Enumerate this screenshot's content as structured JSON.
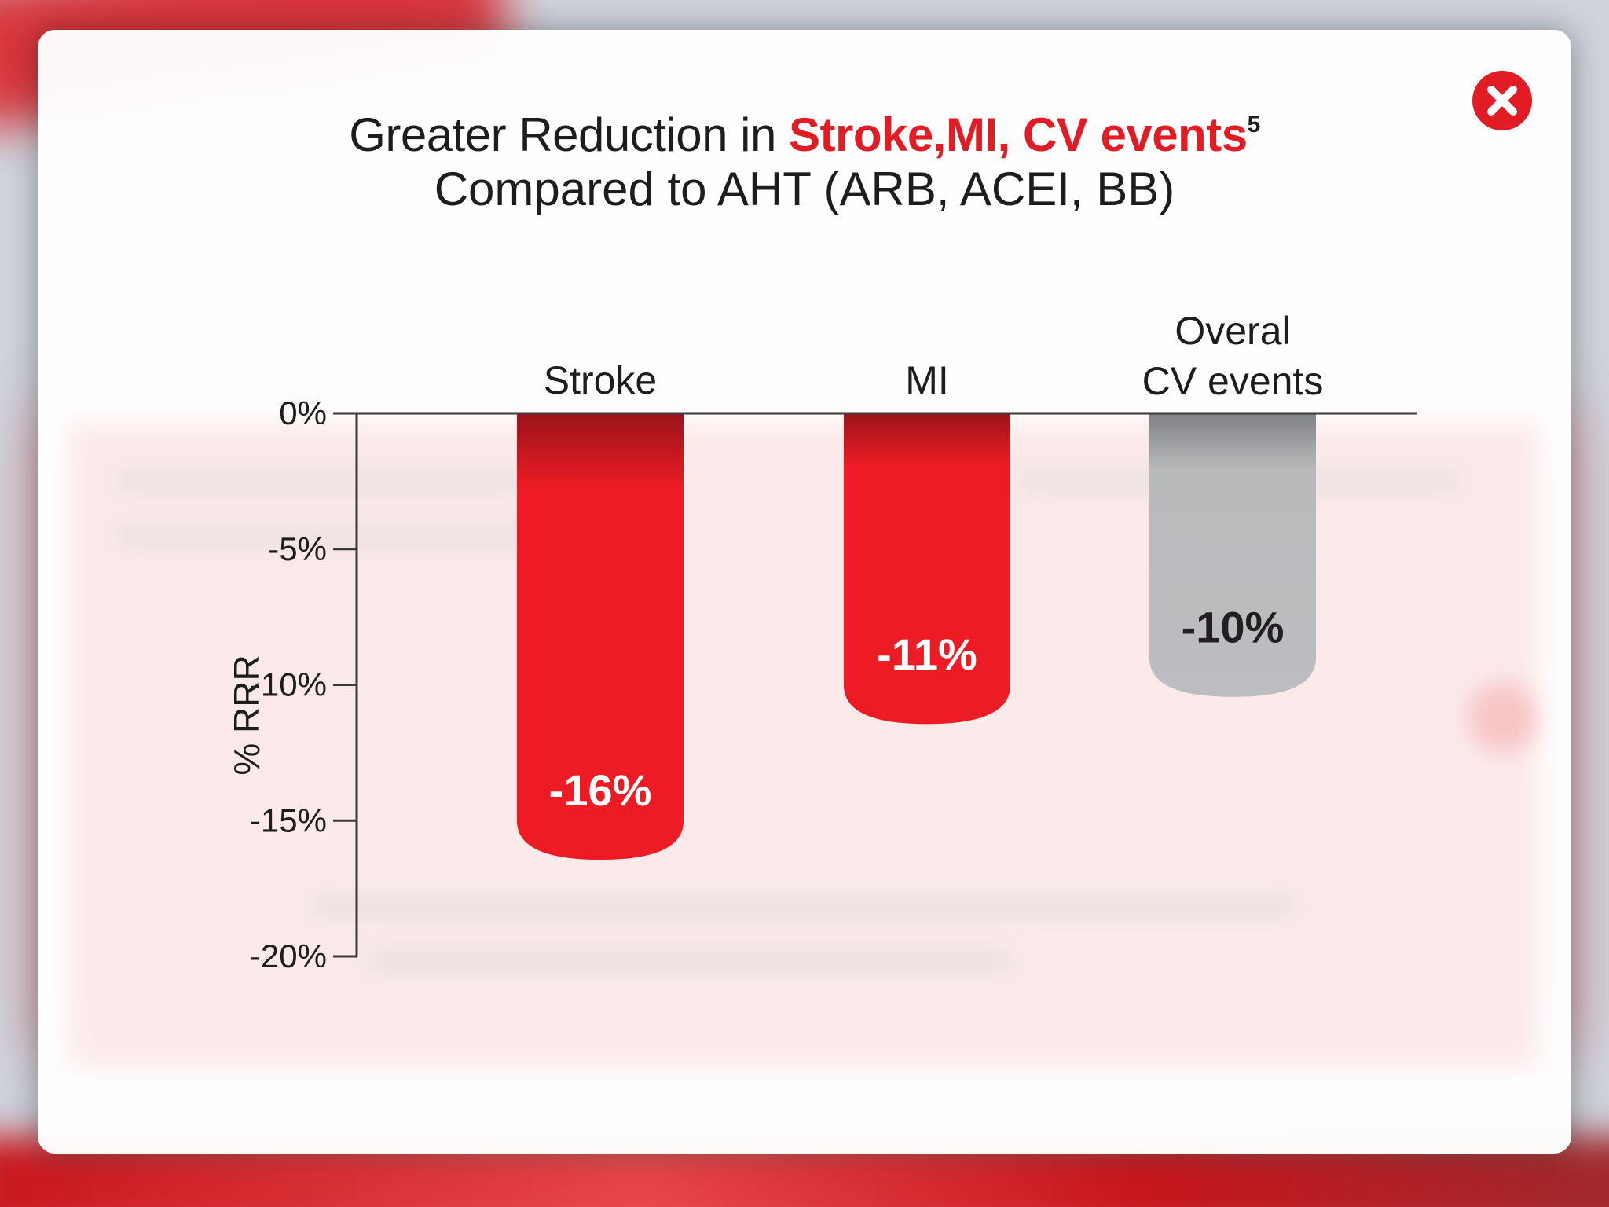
{
  "title": {
    "line1_prefix": "Greater Reduction in ",
    "line1_highlight": "Stroke,MI, CV events",
    "line1_superscript": "5",
    "line2": "Compared to AHT (ARB, ACEI, BB)"
  },
  "close_icon": "close-x-circle-icon",
  "chart_data": {
    "type": "bar",
    "ylabel": "% RRR",
    "ylim": [
      -20,
      0
    ],
    "yticks": [
      0,
      -5,
      -10,
      -15,
      -20
    ],
    "ytick_labels": [
      "0%",
      "-5%",
      "-10%",
      "-15%",
      "-20%"
    ],
    "categories": [
      "Stroke",
      "MI",
      "Overal CV events"
    ],
    "category_label_lines": [
      [
        "Stroke"
      ],
      [
        "MI"
      ],
      [
        "Overal",
        "CV events"
      ]
    ],
    "values": [
      -16,
      -11,
      -10
    ],
    "data_labels": [
      "-16%",
      "-11%",
      "-10%"
    ],
    "colors": [
      "#ed1c24",
      "#ed1c24",
      "#b9babc"
    ],
    "label_colors": [
      "#ffffff",
      "#ffffff",
      "#231f20"
    ],
    "grid": false,
    "legend": "none"
  }
}
